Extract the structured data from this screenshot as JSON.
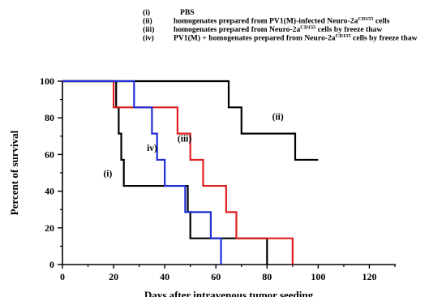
{
  "chart_data": {
    "type": "line",
    "subtype": "step (Kaplan-Meier survival)",
    "xlabel": "Days after intravenous tumor seeding",
    "ylabel": "Percent of survival",
    "xlim": [
      0,
      130
    ],
    "ylim": [
      0,
      100
    ],
    "x_ticks": [
      "0",
      "20",
      "40",
      "60",
      "80",
      "100",
      "120"
    ],
    "y_ticks": [
      "0",
      "20",
      "40",
      "60",
      "80",
      "100"
    ],
    "grid": false,
    "legend_placement": "top",
    "legend": [
      {
        "id": "i",
        "marker": "(i)",
        "text": "PBS",
        "sup": "",
        "text_after": ""
      },
      {
        "id": "ii",
        "marker": "(ii)",
        "text": "homogenates prepared from PV1(M)-infected Neuro-2a",
        "sup": "CD155",
        "text_after": " cells"
      },
      {
        "id": "iii",
        "marker": "(iii)",
        "text": "homogenates prepared from Neuro-2a",
        "sup": "CD155",
        "text_after": " cells by freeze thaw"
      },
      {
        "id": "iv",
        "marker": "(iv)",
        "text": "PV1(M) + homogenates prepared from Neuro-2a",
        "sup": "CD155",
        "text_after": " cells by freeze thaw"
      }
    ],
    "series": [
      {
        "id": "i",
        "label": "(i)",
        "color": "#000000",
        "points": [
          [
            0,
            100
          ],
          [
            21,
            100
          ],
          [
            21,
            85.7
          ],
          [
            22,
            85.7
          ],
          [
            22,
            71.4
          ],
          [
            23,
            71.4
          ],
          [
            23,
            57.1
          ],
          [
            24,
            57.1
          ],
          [
            24,
            42.9
          ],
          [
            49,
            42.9
          ],
          [
            49,
            28.6
          ],
          [
            50,
            28.6
          ],
          [
            50,
            14.3
          ],
          [
            80,
            14.3
          ],
          [
            80,
            0
          ]
        ]
      },
      {
        "id": "ii",
        "label": "(ii)",
        "color": "#000000",
        "points": [
          [
            0,
            100
          ],
          [
            65,
            100
          ],
          [
            65,
            85.7
          ],
          [
            70,
            85.7
          ],
          [
            70,
            71.4
          ],
          [
            91,
            71.4
          ],
          [
            91,
            57.1
          ],
          [
            100,
            57.1
          ]
        ]
      },
      {
        "id": "iii",
        "label": "(iii)",
        "color": "#e02020",
        "points": [
          [
            0,
            100
          ],
          [
            20,
            100
          ],
          [
            20,
            85.7
          ],
          [
            45,
            85.7
          ],
          [
            45,
            71.4
          ],
          [
            50,
            71.4
          ],
          [
            50,
            57.1
          ],
          [
            55,
            57.1
          ],
          [
            55,
            42.9
          ],
          [
            64,
            42.9
          ],
          [
            64,
            28.6
          ],
          [
            68,
            28.6
          ],
          [
            68,
            14.3
          ],
          [
            90,
            14.3
          ],
          [
            90,
            0
          ]
        ]
      },
      {
        "id": "iv",
        "label": "iv)",
        "color": "#1f2fd6",
        "points": [
          [
            0,
            100
          ],
          [
            28,
            100
          ],
          [
            28,
            85.7
          ],
          [
            35,
            85.7
          ],
          [
            35,
            71.4
          ],
          [
            37,
            71.4
          ],
          [
            37,
            57.1
          ],
          [
            40,
            57.1
          ],
          [
            40,
            42.9
          ],
          [
            48,
            42.9
          ],
          [
            48,
            28.6
          ],
          [
            58,
            28.6
          ],
          [
            58,
            14.3
          ],
          [
            62,
            14.3
          ],
          [
            62,
            0
          ]
        ]
      }
    ],
    "curve_labels": [
      {
        "series": "i",
        "text": "(i)",
        "x": 16,
        "y": 48
      },
      {
        "series": "ii",
        "text": "(ii)",
        "x": 82,
        "y": 79
      },
      {
        "series": "iii",
        "text": "(iii)",
        "x": 45,
        "y": 67
      },
      {
        "series": "iv",
        "text": "iv)",
        "x": 33,
        "y": 62
      }
    ]
  }
}
